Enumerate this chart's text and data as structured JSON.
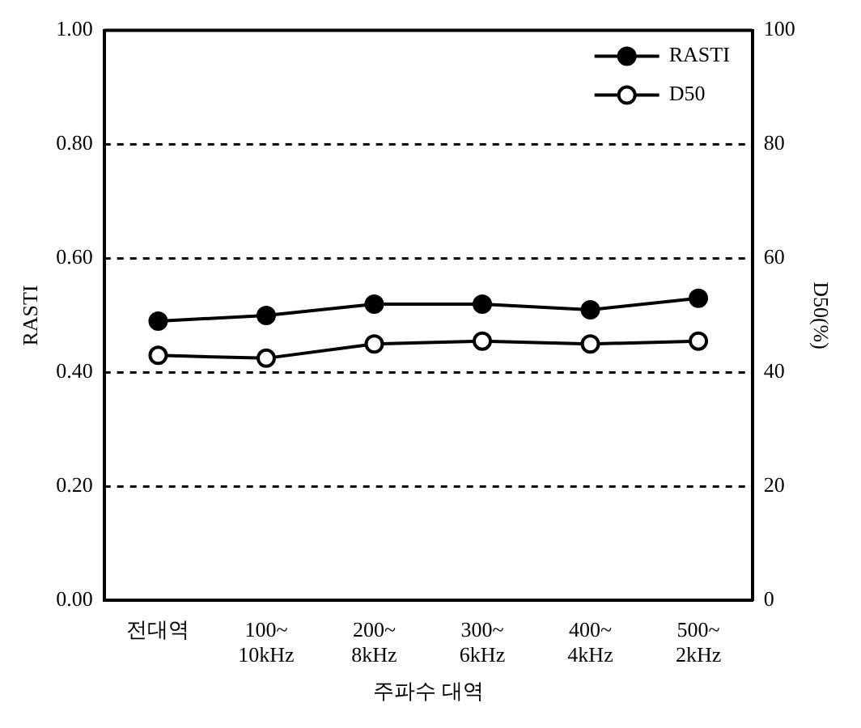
{
  "chart_data": {
    "type": "line",
    "categories": [
      "전대역",
      "100~\n10kHz",
      "200~\n8kHz",
      "300~\n6kHz",
      "400~\n4kHz",
      "500~\n2kHz"
    ],
    "xlabel": "주파수 대역",
    "ylabel": "RASTI",
    "y2label": "D50(%)",
    "series": [
      {
        "name": "RASTI",
        "color": "#000000",
        "values": [
          0.49,
          0.5,
          0.52,
          0.52,
          0.51,
          0.53
        ]
      },
      {
        "name": "D50",
        "color": "#000000",
        "axis": "y2",
        "values": [
          43,
          42.5,
          45,
          45.5,
          45,
          45.5
        ]
      }
    ],
    "ylim": [
      0,
      1
    ],
    "yticks": [
      {
        "value": 0,
        "label": "0.00"
      },
      {
        "value": 0.2,
        "label": "0.20"
      },
      {
        "value": 0.4,
        "label": "0.40"
      },
      {
        "value": 0.6,
        "label": "0.60"
      },
      {
        "value": 0.8,
        "label": "0.80"
      },
      {
        "value": 1,
        "label": "1.00"
      }
    ],
    "y2lim": [
      0,
      100
    ],
    "y2ticks": [
      0,
      20,
      40,
      60,
      80,
      100
    ],
    "grid": "y",
    "marker": "circle",
    "legend": "top right"
  }
}
